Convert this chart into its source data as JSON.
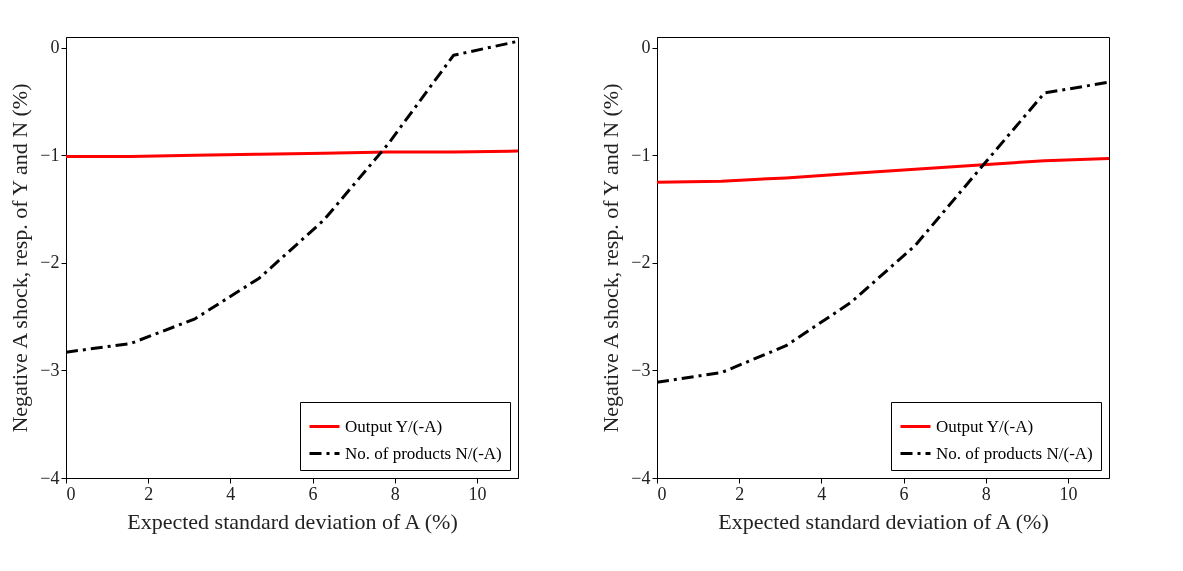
{
  "chart_data": [
    {
      "type": "line",
      "xlabel": "Expected standard deviation of A (%)",
      "ylabel": "Negative A shock, resp. of Y and N (%)",
      "x": [
        0,
        1.57,
        3.14,
        4.71,
        6.28,
        7.85,
        9.43,
        11
      ],
      "xlim": [
        0,
        11
      ],
      "xticks": [
        0,
        2,
        4,
        6,
        8,
        10
      ],
      "ylim": [
        -4,
        0.1
      ],
      "yticks": [
        -4,
        -3,
        -2,
        -1,
        0
      ],
      "grid": false,
      "legend": "bottom right",
      "series": [
        {
          "name": "Output Y/(-A)",
          "color": "#ff0000",
          "line_style": "solid",
          "values": [
            -1.01,
            -1.01,
            -1.0,
            -0.99,
            -0.98,
            -0.97,
            -0.97,
            -0.96
          ]
        },
        {
          "name": "No. of products N/(-A)",
          "color": "#000000",
          "line_style": "dashdot",
          "values": [
            -2.83,
            -2.75,
            -2.52,
            -2.14,
            -1.6,
            -0.89,
            -0.07,
            0.06
          ]
        }
      ]
    },
    {
      "type": "line",
      "xlabel": "Expected standard deviation of A (%)",
      "ylabel": "Negative A shock, resp. of Y and N (%)",
      "x": [
        0,
        1.57,
        3.14,
        4.71,
        6.28,
        7.85,
        9.43,
        11
      ],
      "xlim": [
        0,
        11
      ],
      "xticks": [
        0,
        2,
        4,
        6,
        8,
        10
      ],
      "ylim": [
        -4,
        0.1
      ],
      "yticks": [
        -4,
        -3,
        -2,
        -1,
        0
      ],
      "grid": false,
      "legend": "bottom right",
      "series": [
        {
          "name": "Output Y/(-A)",
          "color": "#ff0000",
          "line_style": "solid",
          "values": [
            -1.25,
            -1.24,
            -1.21,
            -1.17,
            -1.13,
            -1.09,
            -1.05,
            -1.03
          ]
        },
        {
          "name": "No. of products N/(-A)",
          "color": "#000000",
          "line_style": "dashdot",
          "values": [
            -3.11,
            -3.02,
            -2.77,
            -2.37,
            -1.84,
            -1.13,
            -0.42,
            -0.32
          ]
        }
      ]
    }
  ]
}
